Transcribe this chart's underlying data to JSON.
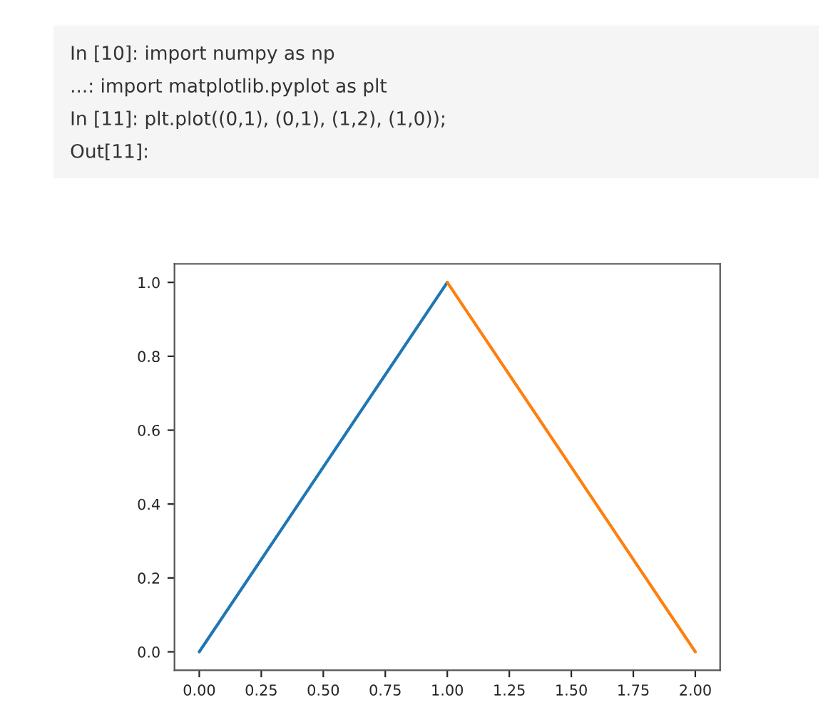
{
  "chart_data": {
    "type": "line",
    "annotations": [
      "In [10]: import numpy as np",
      "...: import matplotlib.pyplot as plt",
      "In [11]: plt.plot((0,1), (0,1), (1,2), (1,0));",
      "Out[11]:"
    ],
    "series": [
      {
        "color": "#1f77b4",
        "x": [
          0,
          1
        ],
        "values": [
          0,
          1
        ]
      },
      {
        "color": "#ff7f0e",
        "x": [
          1,
          2
        ],
        "values": [
          1,
          0
        ]
      }
    ],
    "xlim": [
      -0.1,
      2.1
    ],
    "ylim": [
      -0.05,
      1.05
    ],
    "xticks": [
      {
        "value": 0,
        "label": "0.00"
      },
      {
        "value": 0.25,
        "label": "0.25"
      },
      {
        "value": 0.5,
        "label": "0.50"
      },
      {
        "value": 0.75,
        "label": "0.75"
      },
      {
        "value": 1,
        "label": "1.00"
      },
      {
        "value": 1.25,
        "label": "1.25"
      },
      {
        "value": 1.5,
        "label": "1.50"
      },
      {
        "value": 1.75,
        "label": "1.75"
      },
      {
        "value": 2,
        "label": "2.00"
      }
    ],
    "yticks": [
      {
        "value": 0,
        "label": "0.0"
      },
      {
        "value": 0.2,
        "label": "0.2"
      },
      {
        "value": 0.4,
        "label": "0.4"
      },
      {
        "value": 0.6,
        "label": "0.6"
      },
      {
        "value": 0.8,
        "label": "0.8"
      },
      {
        "value": 1,
        "label": "1.0"
      }
    ],
    "grid": false
  }
}
